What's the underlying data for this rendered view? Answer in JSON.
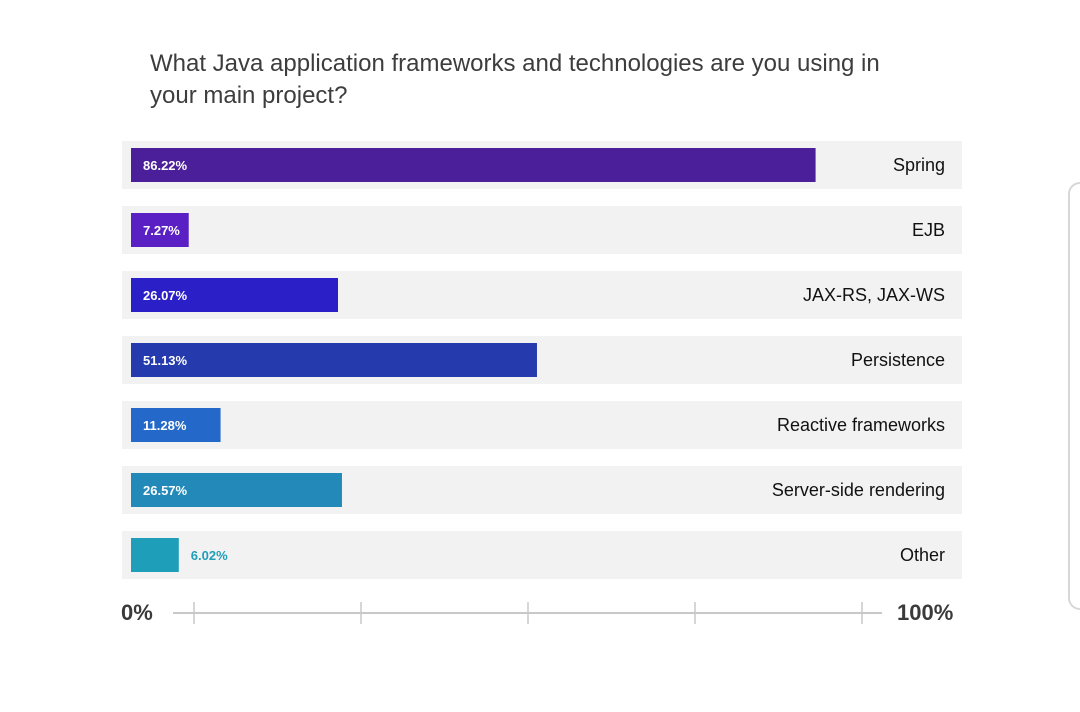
{
  "chart_data": {
    "type": "bar",
    "orientation": "horizontal",
    "title": "What Java application frameworks and technologies are you using in your main project?",
    "categories": [
      "Spring",
      "EJB",
      "JAX-RS, JAX-WS",
      "Persistence",
      "Reactive frameworks",
      "Server-side rendering",
      "Other"
    ],
    "values": [
      86.22,
      7.27,
      26.07,
      51.13,
      11.28,
      26.57,
      6.02
    ],
    "value_labels": [
      "86.22%",
      "7.27%",
      "26.07%",
      "51.13%",
      "11.28%",
      "26.57%",
      "6.02%"
    ],
    "colors": [
      "#4b1f99",
      "#5a20c4",
      "#2b1fc7",
      "#243aad",
      "#2469c9",
      "#2389b8",
      "#1f9eba"
    ],
    "label_inside_color": "#ffffff",
    "label_outside_color": "#1f9eba",
    "track_color": "#f2f2f2",
    "xlim": [
      0,
      100
    ],
    "x_min_label": "0%",
    "x_max_label": "100%",
    "xlabel": "",
    "ylabel": "",
    "legend": "none",
    "grid": false
  }
}
